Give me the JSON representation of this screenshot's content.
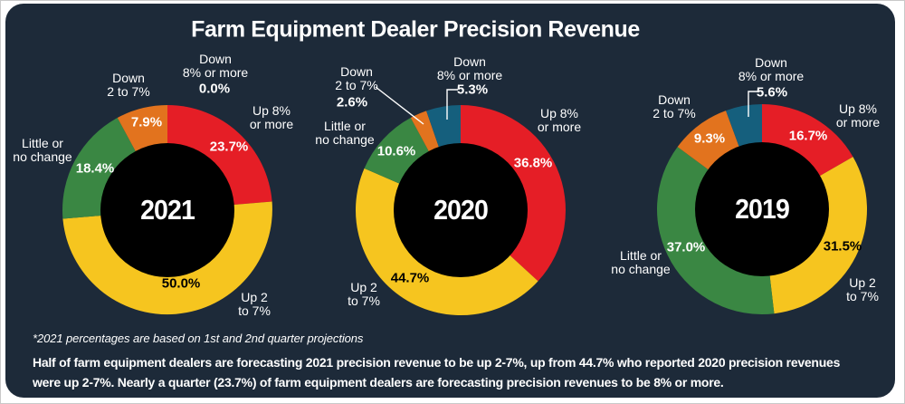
{
  "title": "Farm Equipment Dealer Precision Revenue",
  "footnote": "*2021 percentages are based on 1st and 2nd quarter projections",
  "summary": "Half of farm equipment dealers are forecasting 2021 precision revenue to be up 2-7%, up from 44.7% who reported 2020 precision revenues\nwere up 2-7%. Nearly a quarter (23.7%) of farm equipment dealers are forecasting precision revenues to be 8% or more.",
  "colors": {
    "background": "#1d2a39",
    "frame": "#ffffff",
    "hole": "#000000",
    "up_8_or_more": "#e51e26",
    "up_2_to_7": "#f6c51f",
    "little_or_no_change": "#3a8743",
    "down_2_to_7": "#e2731e",
    "down_8_or_more": "#155f7d"
  },
  "segment_labels": {
    "up8": "Up 8%\nor more",
    "up2": "Up 2\nto 7%",
    "little": "Little or\nno change",
    "down2": "Down\n2 to 7%",
    "down8": "Down\n8% or more"
  },
  "chart_data": [
    {
      "type": "pie",
      "variant": "donut",
      "year": "2021",
      "start_angle_deg": 0,
      "direction": "clockwise",
      "categories": [
        "Up 8% or more",
        "Up 2 to 7%",
        "Little or no change",
        "Down 2 to 7%",
        "Down 8% or more"
      ],
      "values": [
        23.7,
        50.0,
        18.4,
        7.9,
        0.0
      ],
      "value_labels": [
        "23.7%",
        "50.0%",
        "18.4%",
        "7.9%",
        "0.0%"
      ]
    },
    {
      "type": "pie",
      "variant": "donut",
      "year": "2020",
      "start_angle_deg": 0,
      "direction": "clockwise",
      "categories": [
        "Up 8% or more",
        "Up 2 to 7%",
        "Little or no change",
        "Down 2 to 7%",
        "Down 8% or more"
      ],
      "values": [
        36.8,
        44.7,
        10.6,
        2.6,
        5.3
      ],
      "value_labels": [
        "36.8%",
        "44.7%",
        "10.6%",
        "2.6%",
        "5.3%"
      ]
    },
    {
      "type": "pie",
      "variant": "donut",
      "year": "2019",
      "start_angle_deg": 0,
      "direction": "clockwise",
      "categories": [
        "Up 8% or more",
        "Up 2 to 7%",
        "Little or no change",
        "Down 2 to 7%",
        "Down 8% or more"
      ],
      "values": [
        16.7,
        31.5,
        37.0,
        9.3,
        5.6
      ],
      "value_labels": [
        "16.7%",
        "31.5%",
        "37.0%",
        "9.3%",
        "5.6%"
      ]
    }
  ]
}
